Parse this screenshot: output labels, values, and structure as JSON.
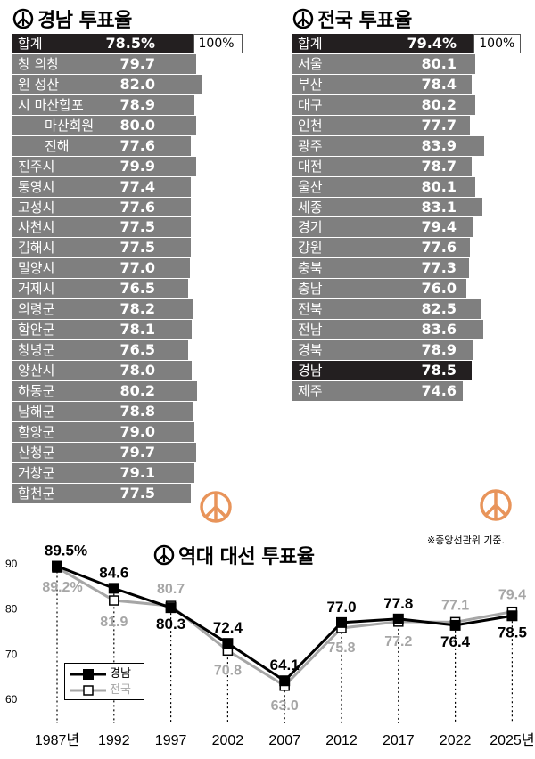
{
  "gyeongnam": {
    "title": "경남 투표율",
    "total_label": "합계",
    "total_value": "78.5%",
    "total_pct": 78.5,
    "full_label": "100%",
    "rows": [
      {
        "label": "창 의창",
        "value": "79.7",
        "pct": 79.7
      },
      {
        "label": "원 성산",
        "value": "82.0",
        "pct": 82.0
      },
      {
        "label": "시 마산합포",
        "value": "78.9",
        "pct": 78.9
      },
      {
        "label": "마산회원",
        "value": "80.0",
        "pct": 80.0,
        "sub": true
      },
      {
        "label": "진해",
        "value": "77.6",
        "pct": 77.6,
        "sub": true
      },
      {
        "label": "진주시",
        "value": "79.9",
        "pct": 79.9
      },
      {
        "label": "통영시",
        "value": "77.4",
        "pct": 77.4
      },
      {
        "label": "고성시",
        "value": "77.6",
        "pct": 77.6
      },
      {
        "label": "사천시",
        "value": "77.5",
        "pct": 77.5
      },
      {
        "label": "김해시",
        "value": "77.5",
        "pct": 77.5
      },
      {
        "label": "밀양시",
        "value": "77.0",
        "pct": 77.0
      },
      {
        "label": "거제시",
        "value": "76.5",
        "pct": 76.5
      },
      {
        "label": "의령군",
        "value": "78.2",
        "pct": 78.2
      },
      {
        "label": "함안군",
        "value": "78.1",
        "pct": 78.1
      },
      {
        "label": "창녕군",
        "value": "76.5",
        "pct": 76.5
      },
      {
        "label": "양산시",
        "value": "78.0",
        "pct": 78.0
      },
      {
        "label": "하동군",
        "value": "80.2",
        "pct": 80.2
      },
      {
        "label": "남해군",
        "value": "78.8",
        "pct": 78.8
      },
      {
        "label": "함양군",
        "value": "79.0",
        "pct": 79.0
      },
      {
        "label": "산청군",
        "value": "79.7",
        "pct": 79.7
      },
      {
        "label": "거창군",
        "value": "79.1",
        "pct": 79.1
      },
      {
        "label": "합천군",
        "value": "77.5",
        "pct": 77.5
      }
    ]
  },
  "national": {
    "title": "전국 투표율",
    "total_label": "합계",
    "total_value": "79.4%",
    "total_pct": 79.4,
    "full_label": "100%",
    "rows": [
      {
        "label": "서울",
        "value": "80.1",
        "pct": 80.1
      },
      {
        "label": "부산",
        "value": "78.4",
        "pct": 78.4
      },
      {
        "label": "대구",
        "value": "80.2",
        "pct": 80.2
      },
      {
        "label": "인천",
        "value": "77.7",
        "pct": 77.7
      },
      {
        "label": "광주",
        "value": "83.9",
        "pct": 83.9
      },
      {
        "label": "대전",
        "value": "78.7",
        "pct": 78.7
      },
      {
        "label": "울산",
        "value": "80.1",
        "pct": 80.1
      },
      {
        "label": "세종",
        "value": "83.1",
        "pct": 83.1
      },
      {
        "label": "경기",
        "value": "79.4",
        "pct": 79.4
      },
      {
        "label": "강원",
        "value": "77.6",
        "pct": 77.6
      },
      {
        "label": "충북",
        "value": "77.3",
        "pct": 77.3
      },
      {
        "label": "충남",
        "value": "76.0",
        "pct": 76.0
      },
      {
        "label": "전북",
        "value": "82.5",
        "pct": 82.5
      },
      {
        "label": "전남",
        "value": "83.6",
        "pct": 83.6
      },
      {
        "label": "경북",
        "value": "78.9",
        "pct": 78.9
      },
      {
        "label": "경남",
        "value": "78.5",
        "pct": 78.5,
        "highlight": true
      },
      {
        "label": "제주",
        "value": "74.6",
        "pct": 74.6
      }
    ],
    "note": "※중앙선관위 기준."
  },
  "history": {
    "title": "역대 대선 투표율",
    "legend": [
      "경남",
      "전국"
    ]
  },
  "colors": {
    "bar": "#7f7f7f",
    "total_bar": "#231f20",
    "gyeongnam_line": "#000000",
    "national_line": "#a6a6a6",
    "stamp": "#e8945a"
  },
  "icons": [
    "ballot-mark-icon",
    "vote-stamp-icon"
  ],
  "chart_data": [
    {
      "type": "bar",
      "title": "경남 투표율",
      "categories": [
        "합계",
        "창원 의창",
        "창원 성산",
        "창원 마산합포",
        "마산회원",
        "진해",
        "진주시",
        "통영시",
        "고성시",
        "사천시",
        "김해시",
        "밀양시",
        "거제시",
        "의령군",
        "함안군",
        "창녕군",
        "양산시",
        "하동군",
        "남해군",
        "함양군",
        "산청군",
        "거창군",
        "합천군"
      ],
      "values": [
        78.5,
        79.7,
        82.0,
        78.9,
        80.0,
        77.6,
        79.9,
        77.4,
        77.6,
        77.5,
        77.5,
        77.0,
        76.5,
        78.2,
        78.1,
        76.5,
        78.0,
        80.2,
        78.8,
        79.0,
        79.7,
        79.1,
        77.5
      ],
      "xlim": [
        0,
        100
      ],
      "orientation": "horizontal"
    },
    {
      "type": "bar",
      "title": "전국 투표율",
      "categories": [
        "합계",
        "서울",
        "부산",
        "대구",
        "인천",
        "광주",
        "대전",
        "울산",
        "세종",
        "경기",
        "강원",
        "충북",
        "충남",
        "전북",
        "전남",
        "경북",
        "경남",
        "제주"
      ],
      "values": [
        79.4,
        80.1,
        78.4,
        80.2,
        77.7,
        83.9,
        78.7,
        80.1,
        83.1,
        79.4,
        77.6,
        77.3,
        76.0,
        82.5,
        83.6,
        78.9,
        78.5,
        74.6
      ],
      "xlim": [
        0,
        100
      ],
      "orientation": "horizontal"
    },
    {
      "type": "line",
      "title": "역대 대선 투표율",
      "x": [
        "1987년",
        "1992",
        "1997",
        "2002",
        "2007",
        "2012",
        "2017",
        "2022",
        "2025년"
      ],
      "series": [
        {
          "name": "경남",
          "values": [
            89.5,
            84.6,
            80.3,
            72.4,
            64.1,
            77.0,
            77.8,
            76.4,
            78.5
          ],
          "labels": [
            "89.5%",
            "84.6",
            "80.3",
            "72.4",
            "64.1",
            "77.0",
            "77.8",
            "76.4",
            "78.5"
          ]
        },
        {
          "name": "전국",
          "values": [
            89.2,
            81.9,
            80.7,
            70.8,
            63.0,
            75.8,
            77.2,
            77.1,
            79.4
          ],
          "labels": [
            "89.2%",
            "81.9",
            "80.7",
            "70.8",
            "63.0",
            "75.8",
            "77.2",
            "77.1",
            "79.4"
          ]
        }
      ],
      "yticks": [
        60,
        70,
        80,
        90
      ],
      "ylim": [
        60,
        90
      ],
      "grid": false,
      "legend": "bottom-left"
    }
  ]
}
